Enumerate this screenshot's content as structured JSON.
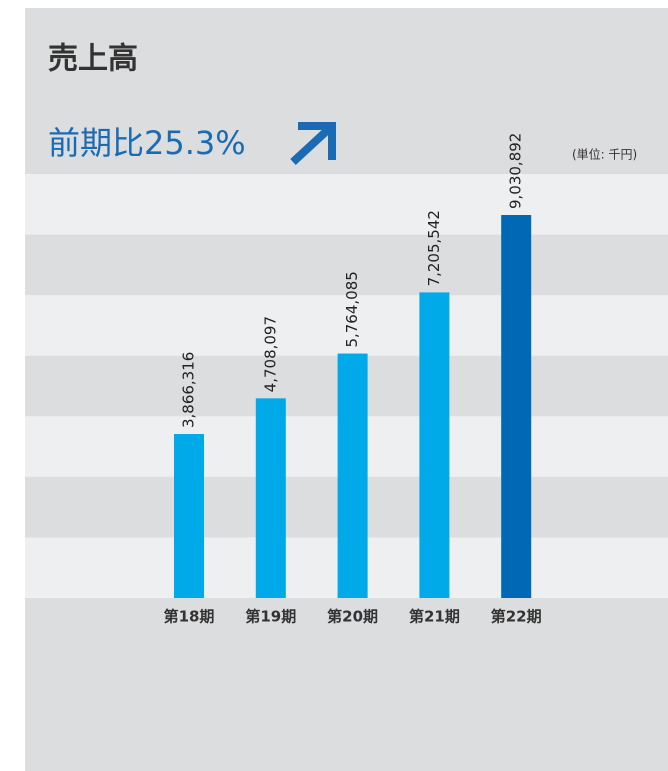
{
  "chart_data": {
    "type": "bar",
    "title": "売上高",
    "subtitle": "前期比25.3%",
    "unit_note": "(単位: 千円)",
    "categories": [
      "第18期",
      "第19期",
      "第20期",
      "第21期",
      "第22期"
    ],
    "values": [
      3866316,
      4708097,
      5764085,
      7205542,
      9030892
    ],
    "value_labels": [
      "3,866,316",
      "4,708,097",
      "5,764,085",
      "7,205,542",
      "9,030,892"
    ],
    "colors": [
      "#00a9e8",
      "#00a9e8",
      "#00a9e8",
      "#00a9e8",
      "#0068b5"
    ]
  }
}
